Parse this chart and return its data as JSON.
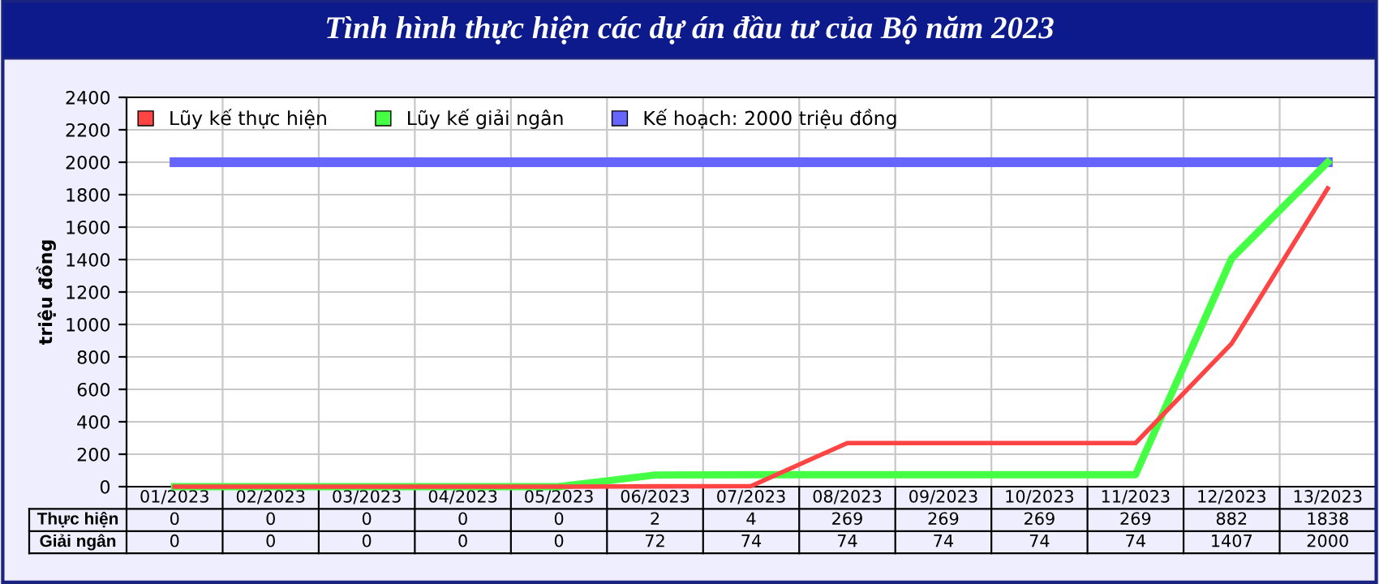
{
  "chart_data": {
    "type": "line",
    "title": "Tình hình thực hiện các dự án đầu tư của Bộ năm 2023",
    "ylabel": "triệu đồng",
    "categories": [
      "01/2023",
      "02/2023",
      "03/2023",
      "04/2023",
      "05/2023",
      "06/2023",
      "07/2023",
      "08/2023",
      "09/2023",
      "10/2023",
      "11/2023",
      "12/2023",
      "13/2023"
    ],
    "series": [
      {
        "name": "Lũy kế thực hiện",
        "color": "#ff4444",
        "values": [
          0,
          0,
          0,
          0,
          0,
          2,
          4,
          269,
          269,
          269,
          269,
          882,
          1838
        ],
        "value_labels": [
          "0",
          "0",
          "0",
          "0",
          "0",
          "2",
          "4",
          "269",
          "269",
          "269",
          "269",
          "882",
          "1838"
        ]
      },
      {
        "name": "Lũy kế giải ngân",
        "color": "#44ff44",
        "values": [
          0,
          0,
          0,
          0,
          0,
          72,
          74,
          74,
          74,
          74,
          74,
          1407,
          2000
        ],
        "value_labels": [
          "0",
          "0",
          "0",
          "0",
          "0",
          "72",
          "74",
          "74",
          "74",
          "74",
          "74",
          "1407",
          "2000"
        ]
      },
      {
        "name": "Kế hoạch: 2000 triệu đồng",
        "color": "#6666ff",
        "values": [
          2000,
          2000,
          2000,
          2000,
          2000,
          2000,
          2000,
          2000,
          2000,
          2000,
          2000,
          2000,
          2000
        ]
      }
    ],
    "annotations": [
      "Thực hiện",
      "Giải ngân"
    ],
    "ylim": [
      0,
      2400
    ],
    "yticks": [
      0,
      200,
      400,
      600,
      800,
      1000,
      1200,
      1400,
      1600,
      1800,
      2000,
      2200,
      2400
    ],
    "grid": true,
    "legend": "top left",
    "marker": "none",
    "line_style": "solid"
  }
}
